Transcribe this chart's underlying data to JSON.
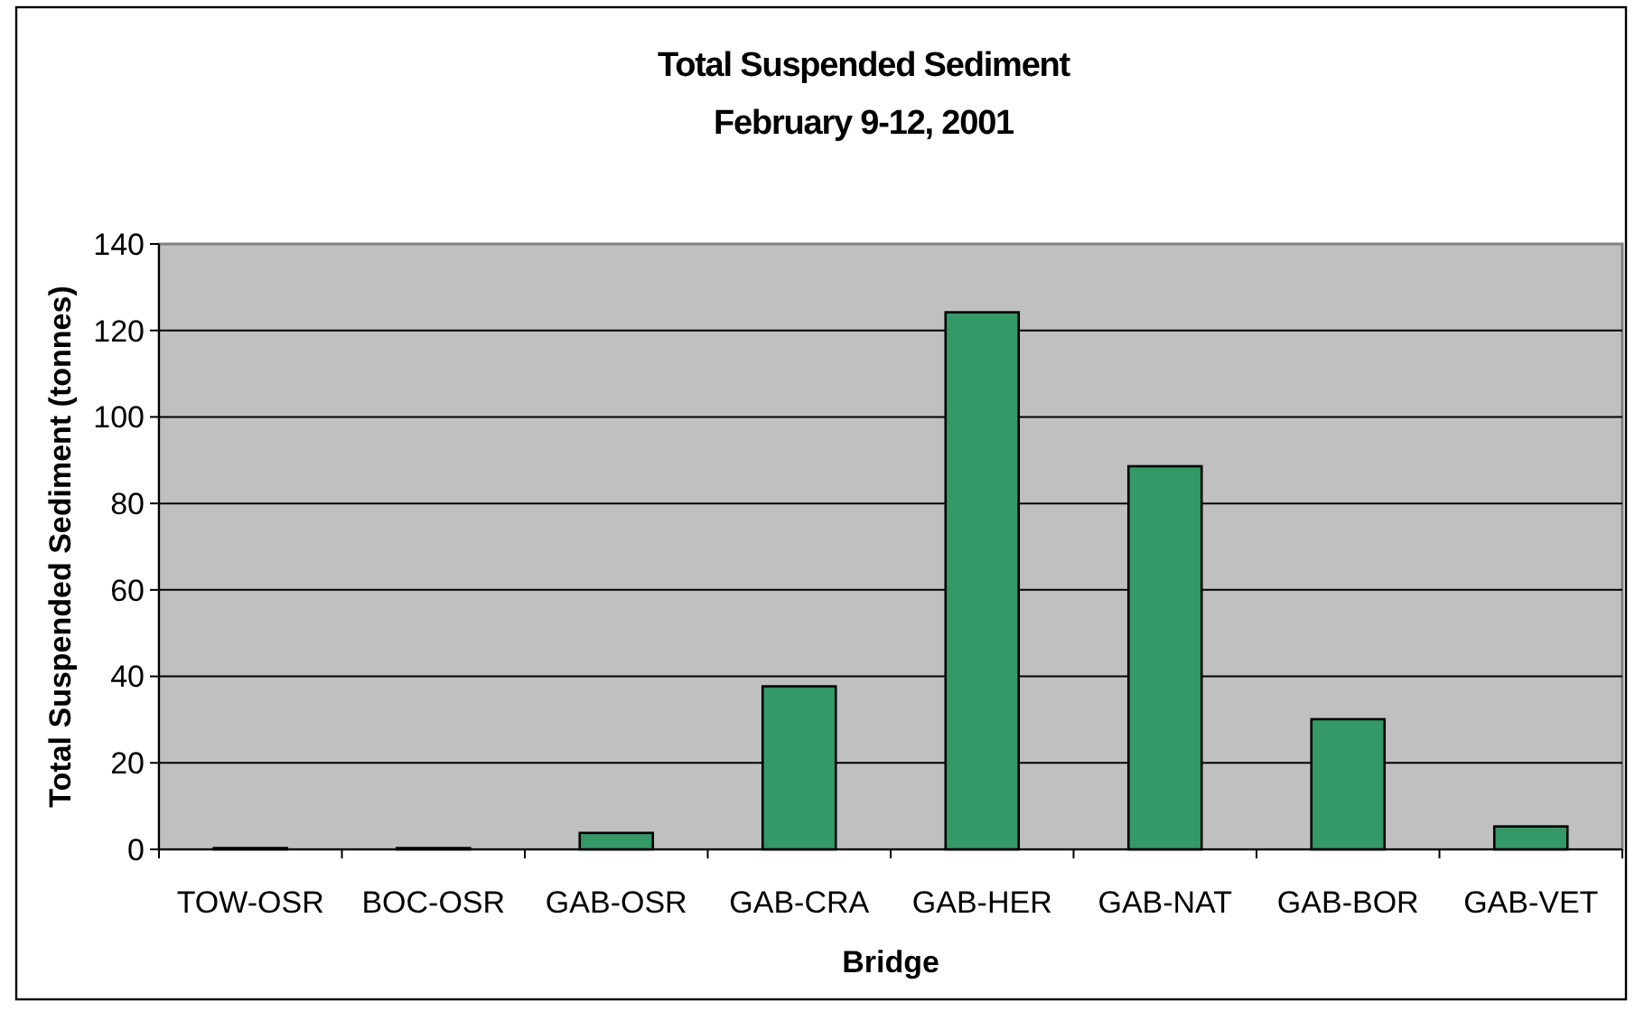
{
  "chart_data": {
    "type": "bar",
    "title": "Total Suspended Sediment",
    "subtitle": "February 9-12, 2001",
    "xlabel": "Bridge",
    "ylabel": "Total Suspended Sediment (tonnes)",
    "categories": [
      "TOW-OSR",
      "BOC-OSR",
      "GAB-OSR",
      "GAB-CRA",
      "GAB-HER",
      "GAB-NAT",
      "GAB-BOR",
      "GAB-VET"
    ],
    "values": [
      0.3,
      0.3,
      3.8,
      37.7,
      124.2,
      88.6,
      30.1,
      5.3
    ],
    "color": "#339966",
    "ylim": [
      0,
      140
    ],
    "yticks": [
      0,
      20,
      40,
      60,
      80,
      100,
      120,
      140
    ],
    "grid": "y"
  }
}
